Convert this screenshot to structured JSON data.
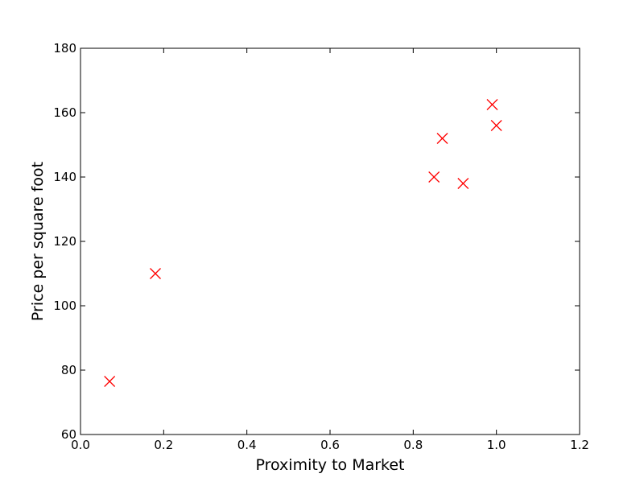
{
  "chart_data": {
    "type": "scatter",
    "title": "",
    "xlabel": "Proximity to Market",
    "ylabel": "Price per square foot",
    "xlim": [
      0.0,
      1.2
    ],
    "ylim": [
      60,
      180
    ],
    "xticks": [
      "0.0",
      "0.2",
      "0.4",
      "0.6",
      "0.8",
      "1.0",
      "1.2"
    ],
    "yticks": [
      "60",
      "80",
      "100",
      "120",
      "140",
      "160",
      "180"
    ],
    "grid": false,
    "legend": "none",
    "marker": "x",
    "marker_color": "#ff0000",
    "series": [
      {
        "points": [
          {
            "x": 0.07,
            "y": 76.5
          },
          {
            "x": 0.18,
            "y": 110
          },
          {
            "x": 0.85,
            "y": 140
          },
          {
            "x": 0.87,
            "y": 152
          },
          {
            "x": 0.92,
            "y": 138
          },
          {
            "x": 0.99,
            "y": 162.5
          },
          {
            "x": 1.0,
            "y": 156
          }
        ]
      }
    ]
  }
}
